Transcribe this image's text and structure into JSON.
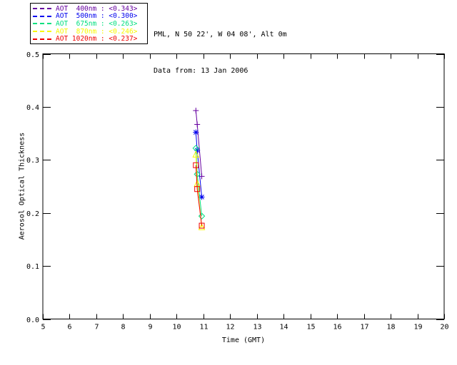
{
  "header": {
    "title": "PML, N 50 22', W 04 08', Alt 0m",
    "subtitle": "Data from: 13 Jan 2006"
  },
  "legend": {
    "items": [
      {
        "label": "AOT  400nm : <0.343>",
        "color": "#6600A0",
        "marker": "plus"
      },
      {
        "label": "AOT  500nm : <0.300>",
        "color": "#0000EE",
        "marker": "asterisk"
      },
      {
        "label": "AOT  675nm : <0.263>",
        "color": "#00DF7F",
        "marker": "diamond"
      },
      {
        "label": "AOT  870nm : <0.246>",
        "color": "#F8F800",
        "marker": "triangle"
      },
      {
        "label": "AOT 1020nm : <0.237>",
        "color": "#EE0000",
        "marker": "square"
      }
    ]
  },
  "chart_data": {
    "type": "line",
    "title": "PML, N 50 22', W 04 08', Alt 0m",
    "subtitle": "Data from: 13 Jan 2006",
    "xlabel": "Time (GMT)",
    "ylabel": "Aerosol Optical Thickness",
    "xlim": [
      5,
      20
    ],
    "ylim": [
      0.0,
      0.5
    ],
    "xticks": [
      5,
      6,
      7,
      8,
      9,
      10,
      11,
      12,
      13,
      14,
      15,
      16,
      17,
      18,
      19,
      20
    ],
    "yticks": [
      0.0,
      0.1,
      0.2,
      0.3,
      0.4,
      0.5
    ],
    "grid": false,
    "legend_position": "outside-top-left",
    "x": [
      10.72,
      10.77,
      10.94
    ],
    "series": [
      {
        "name": "AOT 400nm",
        "wavelength_nm": 400,
        "color": "#6600A0",
        "marker": "plus",
        "values": [
          0.393,
          0.367,
          0.269
        ],
        "mean": 0.343
      },
      {
        "name": "AOT 500nm",
        "wavelength_nm": 500,
        "color": "#0000EE",
        "marker": "asterisk",
        "values": [
          0.352,
          0.318,
          0.23
        ],
        "mean": 0.3
      },
      {
        "name": "AOT 675nm",
        "wavelength_nm": 675,
        "color": "#00DF7F",
        "marker": "diamond",
        "values": [
          0.322,
          0.273,
          0.194
        ],
        "mean": 0.263
      },
      {
        "name": "AOT 870nm",
        "wavelength_nm": 870,
        "color": "#F8F800",
        "marker": "triangle",
        "values": [
          0.31,
          0.255,
          0.173
        ],
        "mean": 0.246
      },
      {
        "name": "AOT 1020nm",
        "wavelength_nm": 1020,
        "color": "#EE0000",
        "marker": "square",
        "values": [
          0.29,
          0.245,
          0.176
        ],
        "mean": 0.237
      }
    ]
  }
}
